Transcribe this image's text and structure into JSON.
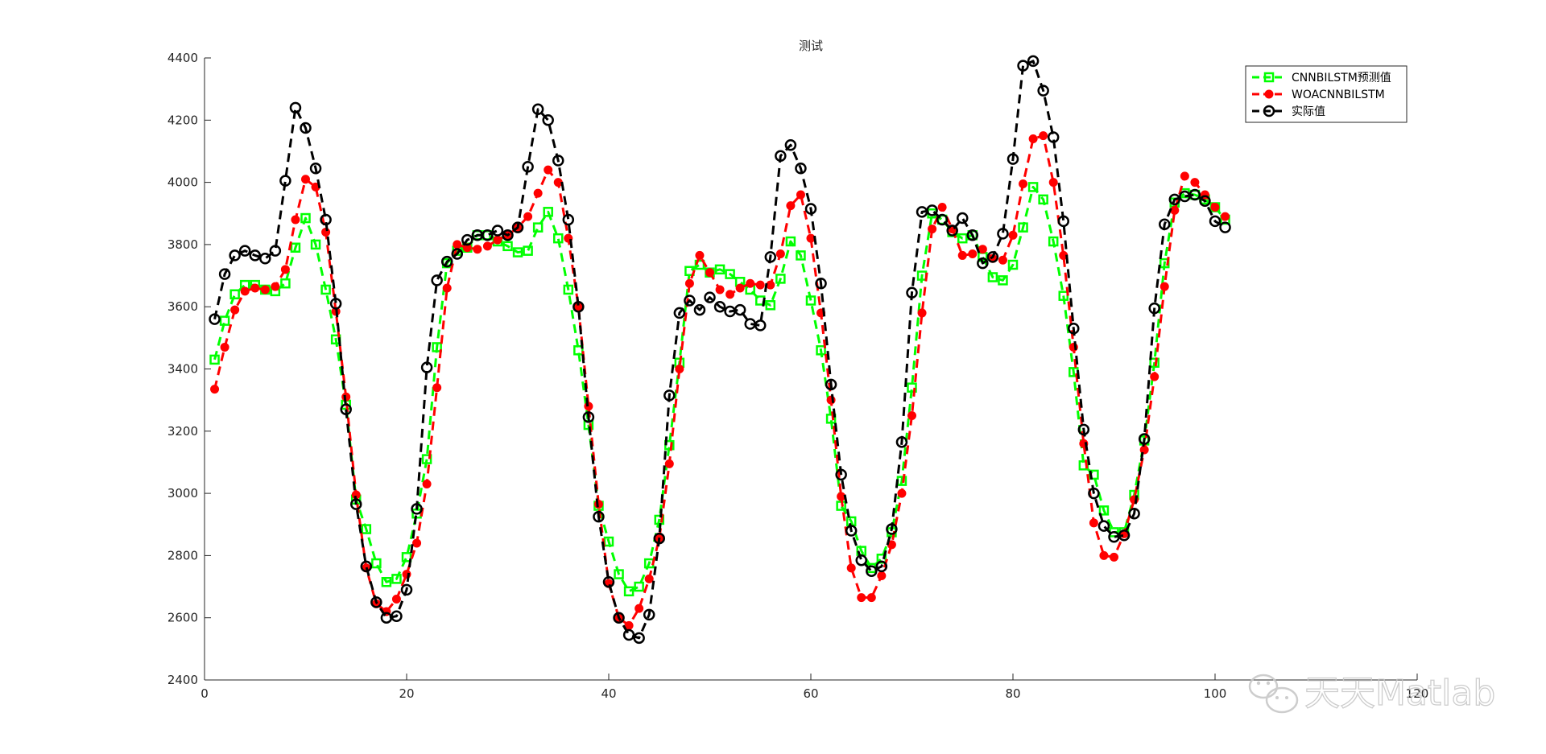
{
  "chart_data": {
    "type": "line",
    "title": "测试",
    "xlabel": "",
    "ylabel": "",
    "xlim": [
      0,
      120
    ],
    "ylim": [
      2400,
      4400
    ],
    "xticks": [
      0,
      20,
      40,
      60,
      80,
      100,
      120
    ],
    "yticks": [
      2400,
      2600,
      2800,
      3000,
      3200,
      3400,
      3600,
      3800,
      4000,
      4200,
      4400
    ],
    "legend_position": "top-right",
    "grid": false,
    "series": [
      {
        "name": "CNNBILSTM预测值",
        "color": "#00ff00",
        "marker": "square",
        "x": [
          1,
          2,
          3,
          4,
          5,
          6,
          7,
          8,
          9,
          10,
          11,
          12,
          13,
          14,
          15,
          16,
          17,
          18,
          19,
          20,
          21,
          22,
          23,
          24,
          25,
          26,
          27,
          28,
          29,
          30,
          31,
          32,
          33,
          34,
          35,
          36,
          37,
          38,
          39,
          40,
          41,
          42,
          43,
          44,
          45,
          46,
          47,
          48,
          49,
          50,
          51,
          52,
          53,
          54,
          55,
          56,
          57,
          58,
          59,
          60,
          61,
          62,
          63,
          64,
          65,
          66,
          67,
          68,
          69,
          70,
          71,
          72,
          73,
          74,
          75,
          76,
          77,
          78,
          79,
          80,
          81,
          82,
          83,
          84,
          85,
          86,
          87,
          88,
          89,
          90,
          91,
          92,
          93,
          94,
          95,
          96,
          97,
          98,
          99,
          100,
          101
        ],
        "values": [
          3430,
          3555,
          3640,
          3670,
          3670,
          3655,
          3650,
          3675,
          3790,
          3885,
          3800,
          3655,
          3495,
          3285,
          2980,
          2885,
          2775,
          2715,
          2725,
          2795,
          2935,
          3110,
          3470,
          3740,
          3780,
          3790,
          3830,
          3830,
          3810,
          3795,
          3775,
          3780,
          3855,
          3905,
          3820,
          3655,
          3460,
          3220,
          2960,
          2845,
          2740,
          2685,
          2700,
          2775,
          2915,
          3155,
          3420,
          3715,
          3735,
          3710,
          3720,
          3705,
          3680,
          3655,
          3620,
          3605,
          3690,
          3810,
          3765,
          3620,
          3460,
          3240,
          2960,
          2910,
          2815,
          2760,
          2790,
          2875,
          3040,
          3340,
          3700,
          3900,
          3880,
          3840,
          3820,
          3830,
          3760,
          3695,
          3685,
          3735,
          3855,
          3985,
          3945,
          3810,
          3635,
          3390,
          3090,
          3060,
          2945,
          2875,
          2875,
          2995,
          3170,
          3420,
          3740,
          3935,
          3965,
          3960,
          3945,
          3920,
          3880
        ]
      },
      {
        "name": "WOACNNBILSTM",
        "color": "#ff0000",
        "marker": "circle-filled",
        "x": [
          1,
          2,
          3,
          4,
          5,
          6,
          7,
          8,
          9,
          10,
          11,
          12,
          13,
          14,
          15,
          16,
          17,
          18,
          19,
          20,
          21,
          22,
          23,
          24,
          25,
          26,
          27,
          28,
          29,
          30,
          31,
          32,
          33,
          34,
          35,
          36,
          37,
          38,
          39,
          40,
          41,
          42,
          43,
          44,
          45,
          46,
          47,
          48,
          49,
          50,
          51,
          52,
          53,
          54,
          55,
          56,
          57,
          58,
          59,
          60,
          61,
          62,
          63,
          64,
          65,
          66,
          67,
          68,
          69,
          70,
          71,
          72,
          73,
          74,
          75,
          76,
          77,
          78,
          79,
          80,
          81,
          82,
          83,
          84,
          85,
          86,
          87,
          88,
          89,
          90,
          91,
          92,
          93,
          94,
          95,
          96,
          97,
          98,
          99,
          100,
          101
        ],
        "values": [
          3335,
          3470,
          3590,
          3650,
          3660,
          3655,
          3665,
          3720,
          3880,
          4010,
          3985,
          3840,
          3585,
          3310,
          2995,
          2760,
          2645,
          2620,
          2660,
          2740,
          2840,
          3030,
          3340,
          3660,
          3800,
          3790,
          3785,
          3795,
          3815,
          3830,
          3855,
          3890,
          3965,
          4040,
          4000,
          3820,
          3600,
          3280,
          2965,
          2710,
          2600,
          2575,
          2630,
          2725,
          2855,
          3095,
          3400,
          3675,
          3765,
          3710,
          3655,
          3640,
          3660,
          3675,
          3670,
          3670,
          3770,
          3925,
          3960,
          3820,
          3580,
          3300,
          2990,
          2760,
          2665,
          2665,
          2735,
          2835,
          3000,
          3250,
          3580,
          3850,
          3920,
          3850,
          3765,
          3770,
          3785,
          3755,
          3750,
          3830,
          3995,
          4140,
          4150,
          4000,
          3765,
          3470,
          3160,
          2905,
          2800,
          2795,
          2870,
          2980,
          3140,
          3375,
          3665,
          3910,
          4020,
          4000,
          3960,
          3920,
          3890
        ]
      },
      {
        "name": "实际值",
        "color": "#000000",
        "marker": "circle-open",
        "x": [
          1,
          2,
          3,
          4,
          5,
          6,
          7,
          8,
          9,
          10,
          11,
          12,
          13,
          14,
          15,
          16,
          17,
          18,
          19,
          20,
          21,
          22,
          23,
          24,
          25,
          26,
          27,
          28,
          29,
          30,
          31,
          32,
          33,
          34,
          35,
          36,
          37,
          38,
          39,
          40,
          41,
          42,
          43,
          44,
          45,
          46,
          47,
          48,
          49,
          50,
          51,
          52,
          53,
          54,
          55,
          56,
          57,
          58,
          59,
          60,
          61,
          62,
          63,
          64,
          65,
          66,
          67,
          68,
          69,
          70,
          71,
          72,
          73,
          74,
          75,
          76,
          77,
          78,
          79,
          80,
          81,
          82,
          83,
          84,
          85,
          86,
          87,
          88,
          89,
          90,
          91,
          92,
          93,
          94,
          95,
          96,
          97,
          98,
          99,
          100,
          101
        ],
        "values": [
          3560,
          3705,
          3765,
          3780,
          3765,
          3755,
          3780,
          4005,
          4240,
          4175,
          4045,
          3880,
          3610,
          3270,
          2965,
          2765,
          2650,
          2600,
          2605,
          2690,
          2950,
          3405,
          3685,
          3745,
          3770,
          3815,
          3830,
          3830,
          3845,
          3830,
          3855,
          4050,
          4235,
          4200,
          4070,
          3880,
          3600,
          3245,
          2925,
          2715,
          2600,
          2545,
          2535,
          2610,
          2855,
          3315,
          3580,
          3620,
          3590,
          3630,
          3600,
          3585,
          3590,
          3545,
          3540,
          3760,
          4085,
          4120,
          4045,
          3915,
          3675,
          3350,
          3060,
          2880,
          2785,
          2750,
          2765,
          2885,
          3165,
          3645,
          3905,
          3910,
          3880,
          3845,
          3885,
          3830,
          3740,
          3760,
          3835,
          4075,
          4375,
          4390,
          4295,
          4145,
          3875,
          3530,
          3205,
          3000,
          2895,
          2860,
          2865,
          2935,
          3175,
          3595,
          3865,
          3945,
          3955,
          3960,
          3940,
          3875,
          3855
        ]
      }
    ]
  },
  "watermark": {
    "text": "天天Matlab",
    "icon": "wechat-icon"
  }
}
